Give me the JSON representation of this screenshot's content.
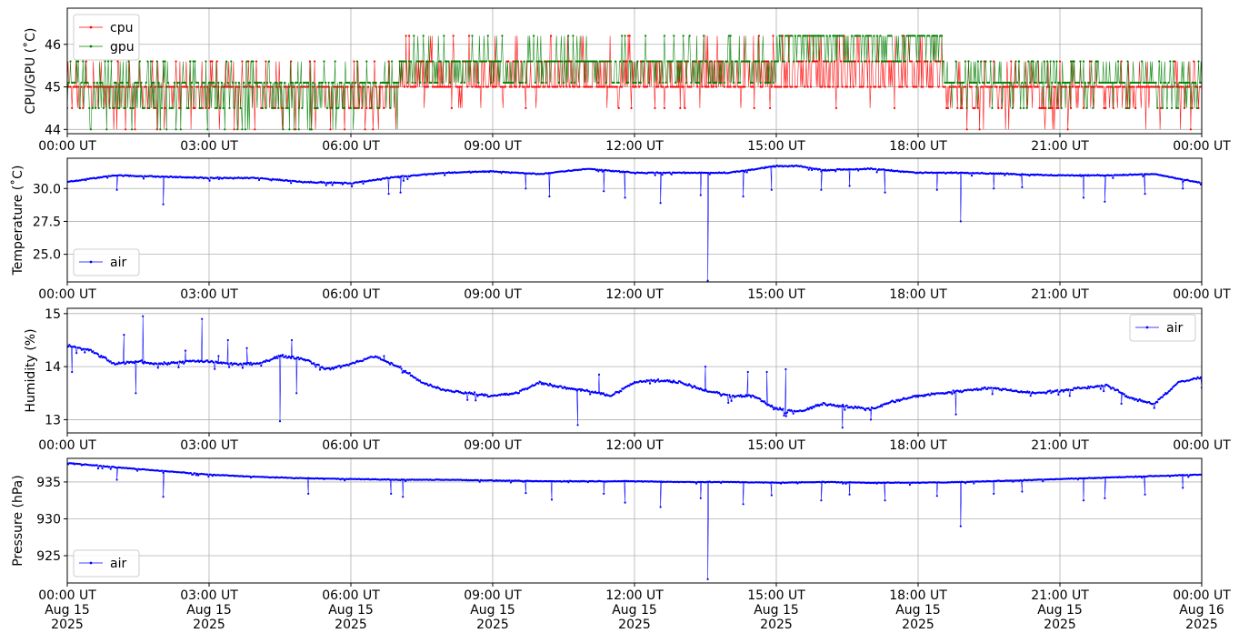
{
  "chart_data": [
    {
      "type": "line",
      "ylabel": "CPU/GPU (˚C)",
      "ylim": [
        43.9,
        46.85
      ],
      "yticks": [
        44,
        45,
        46
      ],
      "xlim": [
        0,
        24
      ],
      "xtick_labels": [
        "00:00 UT",
        "03:00 UT",
        "06:00 UT",
        "09:00 UT",
        "12:00 UT",
        "15:00 UT",
        "18:00 UT",
        "21:00 UT",
        "00:00 UT"
      ],
      "legend_loc": "upper-left",
      "grid": true,
      "series": [
        {
          "name": "cpu",
          "color": "#ff0000",
          "levels": [
            44.0,
            44.5,
            45.0,
            45.6,
            46.2
          ],
          "segments": [
            {
              "x": [
                0.0,
                7.0
              ],
              "base": 45.0,
              "low": 44.5,
              "high": 45.6,
              "p_low": 0.22,
              "p_high": 0.08,
              "p_very_low": 0.05
            },
            {
              "x": [
                7.0,
                15.0
              ],
              "base": 45.0,
              "low": 44.5,
              "high": 45.6,
              "p_low": 0.03,
              "p_high": 0.35,
              "p_very_high": 0.05
            },
            {
              "x": [
                15.0,
                18.5
              ],
              "base": 45.0,
              "low": 44.5,
              "high": 45.6,
              "p_low": 0.02,
              "p_high": 0.45,
              "p_very_high": 0.1
            },
            {
              "x": [
                18.5,
                24.0
              ],
              "base": 45.0,
              "low": 44.5,
              "high": 45.6,
              "p_low": 0.15,
              "p_high": 0.1,
              "p_very_low": 0.03
            }
          ]
        },
        {
          "name": "gpu",
          "color": "#008000",
          "levels": [
            44.0,
            44.5,
            45.1,
            45.6,
            46.2,
            46.7
          ],
          "segments": [
            {
              "x": [
                0.0,
                7.0
              ],
              "base": 45.1,
              "low": 44.5,
              "high": 45.6,
              "p_low": 0.3,
              "p_high": 0.12,
              "p_very_low": 0.05
            },
            {
              "x": [
                7.0,
                15.0
              ],
              "base": 45.6,
              "low": 45.1,
              "high": 46.2,
              "p_low": 0.35,
              "p_high": 0.1
            },
            {
              "x": [
                15.0,
                18.5
              ],
              "base": 46.2,
              "low": 45.6,
              "high": 46.2,
              "p_low": 0.35,
              "p_high": 0.0,
              "p_very_high": 0.01
            },
            {
              "x": [
                18.5,
                24.0
              ],
              "base": 45.1,
              "low": 44.5,
              "high": 45.6,
              "p_low": 0.12,
              "p_high": 0.25
            }
          ]
        }
      ]
    },
    {
      "type": "line",
      "ylabel": "Temperature (˚C)",
      "ylim": [
        22.9,
        32.3
      ],
      "yticks": [
        "25.0",
        "27.5",
        "30.0"
      ],
      "ytick_values": [
        25.0,
        27.5,
        30.0
      ],
      "xlim": [
        0,
        24
      ],
      "xtick_labels": [
        "00:00 UT",
        "03:00 UT",
        "06:00 UT",
        "09:00 UT",
        "12:00 UT",
        "15:00 UT",
        "18:00 UT",
        "21:00 UT",
        "00:00 UT"
      ],
      "legend_loc": "lower-left",
      "grid": true,
      "series": [
        {
          "name": "air",
          "color": "#0000ff",
          "x": [
            0,
            1,
            2,
            3,
            4,
            5,
            6,
            7,
            8,
            9,
            10,
            11,
            12,
            13,
            14,
            15,
            15.5,
            16,
            17,
            18,
            19,
            20,
            21,
            22,
            23,
            24
          ],
          "y": [
            30.5,
            31.0,
            30.9,
            30.8,
            30.8,
            30.5,
            30.4,
            30.9,
            31.2,
            31.3,
            31.1,
            31.5,
            31.2,
            31.2,
            31.2,
            31.7,
            31.7,
            31.4,
            31.5,
            31.2,
            31.2,
            31.1,
            31.0,
            31.0,
            31.1,
            30.4
          ],
          "dips": [
            [
              1.05,
              29.9
            ],
            [
              2.03,
              28.8
            ],
            [
              6.8,
              29.6
            ],
            [
              7.05,
              29.7
            ],
            [
              9.7,
              30.0
            ],
            [
              10.2,
              29.4
            ],
            [
              11.35,
              29.8
            ],
            [
              11.8,
              29.3
            ],
            [
              12.55,
              28.9
            ],
            [
              13.4,
              29.5
            ],
            [
              13.55,
              23.0
            ],
            [
              14.3,
              29.4
            ],
            [
              14.9,
              29.9
            ],
            [
              15.95,
              29.9
            ],
            [
              16.55,
              30.2
            ],
            [
              17.3,
              29.7
            ],
            [
              18.4,
              29.9
            ],
            [
              18.9,
              27.5
            ],
            [
              19.6,
              30.0
            ],
            [
              20.2,
              30.1
            ],
            [
              21.5,
              29.3
            ],
            [
              21.95,
              29.0
            ],
            [
              22.8,
              29.6
            ],
            [
              23.6,
              30.0
            ]
          ]
        }
      ]
    },
    {
      "type": "line",
      "ylabel": "Humidity (%)",
      "ylim": [
        12.75,
        15.1
      ],
      "yticks": [
        13,
        14,
        15
      ],
      "xlim": [
        0,
        24
      ],
      "xtick_labels": [
        "00:00 UT",
        "03:00 UT",
        "06:00 UT",
        "09:00 UT",
        "12:00 UT",
        "15:00 UT",
        "18:00 UT",
        "21:00 UT",
        "00:00 UT"
      ],
      "legend_loc": "upper-right",
      "grid": true,
      "series": [
        {
          "name": "air",
          "color": "#0000ff",
          "x": [
            0,
            0.5,
            1,
            1.5,
            2,
            2.5,
            3,
            3.5,
            4,
            4.5,
            5,
            5.5,
            6,
            6.5,
            7,
            7.5,
            8,
            8.5,
            9,
            9.5,
            10,
            10.5,
            11,
            11.5,
            12,
            12.5,
            13,
            13.5,
            14,
            14.5,
            15,
            15.5,
            16,
            16.5,
            17,
            17.5,
            18,
            18.5,
            19,
            19.5,
            20,
            20.5,
            21,
            21.5,
            22,
            22.5,
            23,
            23.5,
            24
          ],
          "y": [
            14.4,
            14.3,
            14.05,
            14.1,
            14.05,
            14.1,
            14.1,
            14.05,
            14.05,
            14.2,
            14.15,
            13.95,
            14.05,
            14.2,
            14.0,
            13.7,
            13.55,
            13.5,
            13.45,
            13.5,
            13.7,
            13.6,
            13.55,
            13.45,
            13.7,
            13.75,
            13.7,
            13.55,
            13.45,
            13.45,
            13.2,
            13.15,
            13.3,
            13.25,
            13.2,
            13.35,
            13.45,
            13.5,
            13.55,
            13.6,
            13.55,
            13.5,
            13.55,
            13.6,
            13.65,
            13.4,
            13.3,
            13.7,
            13.8
          ],
          "spikes": [
            [
              0.1,
              13.9
            ],
            [
              1.2,
              14.6
            ],
            [
              1.45,
              13.5
            ],
            [
              1.6,
              14.95
            ],
            [
              2.5,
              14.3
            ],
            [
              2.85,
              14.9
            ],
            [
              3.2,
              14.2
            ],
            [
              3.4,
              14.5
            ],
            [
              3.8,
              14.35
            ],
            [
              4.5,
              12.97
            ],
            [
              4.75,
              14.5
            ],
            [
              4.85,
              13.5
            ],
            [
              6.7,
              14.2
            ],
            [
              10.8,
              12.9
            ],
            [
              11.25,
              13.85
            ],
            [
              12.8,
              13.7
            ],
            [
              13.5,
              14.0
            ],
            [
              14.4,
              13.9
            ],
            [
              14.8,
              13.9
            ],
            [
              15.2,
              13.95
            ],
            [
              16.4,
              12.85
            ],
            [
              17.0,
              13.0
            ],
            [
              18.8,
              13.1
            ],
            [
              22.3,
              13.3
            ]
          ]
        }
      ]
    },
    {
      "type": "line",
      "ylabel": "Pressure (hPa)",
      "ylim": [
        921.3,
        938.2
      ],
      "yticks": [
        925,
        930,
        935
      ],
      "xlim": [
        0,
        24
      ],
      "xtick_labels": [
        "00:00 UT\nAug 15\n2025",
        "03:00 UT\nAug 15\n2025",
        "06:00 UT\nAug 15\n2025",
        "09:00 UT\nAug 15\n2025",
        "12:00 UT\nAug 15\n2025",
        "15:00 UT\nAug 15\n2025",
        "18:00 UT\nAug 15\n2025",
        "21:00 UT\nAug 15\n2025",
        "00:00 UT\nAug 16\n2025"
      ],
      "legend_loc": "lower-left",
      "grid": true,
      "series": [
        {
          "name": "air",
          "color": "#0000ff",
          "x": [
            0,
            1,
            2,
            3,
            4,
            5,
            6,
            7,
            8,
            9,
            10,
            11,
            12,
            13,
            14,
            15,
            16,
            17,
            18,
            19,
            20,
            21,
            22,
            23,
            24
          ],
          "y": [
            937.6,
            937.0,
            936.5,
            936.0,
            935.7,
            935.5,
            935.4,
            935.3,
            935.3,
            935.2,
            935.1,
            935.1,
            935.1,
            935.0,
            935.0,
            934.9,
            935.0,
            934.9,
            934.9,
            935.0,
            935.2,
            935.4,
            935.6,
            935.8,
            936.0
          ],
          "dips": [
            [
              1.05,
              935.3
            ],
            [
              2.03,
              933.0
            ],
            [
              5.1,
              933.4
            ],
            [
              6.85,
              933.4
            ],
            [
              7.1,
              933.0
            ],
            [
              9.7,
              933.5
            ],
            [
              10.25,
              932.6
            ],
            [
              11.35,
              933.4
            ],
            [
              11.8,
              932.2
            ],
            [
              12.55,
              931.6
            ],
            [
              13.4,
              932.8
            ],
            [
              13.55,
              921.8
            ],
            [
              14.3,
              932.0
            ],
            [
              14.9,
              933.2
            ],
            [
              15.95,
              932.5
            ],
            [
              16.55,
              933.3
            ],
            [
              17.3,
              932.5
            ],
            [
              18.4,
              933.1
            ],
            [
              18.9,
              929.0
            ],
            [
              19.6,
              933.4
            ],
            [
              20.2,
              933.7
            ],
            [
              21.5,
              932.5
            ],
            [
              21.95,
              932.8
            ],
            [
              22.8,
              933.3
            ],
            [
              23.6,
              934.2
            ]
          ]
        }
      ]
    }
  ]
}
